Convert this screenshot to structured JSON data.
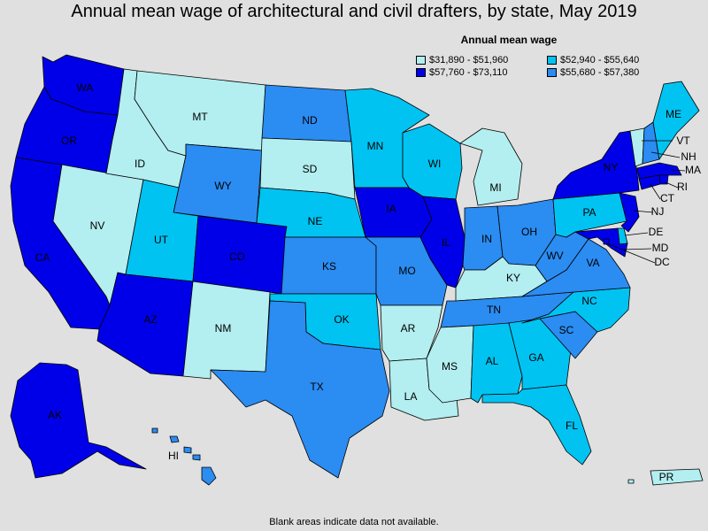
{
  "title": "Annual mean wage of architectural and civil drafters, by state, May 2019",
  "legend": {
    "title": "Annual mean wage",
    "items": [
      {
        "key": "c1",
        "label": "$31,890 - $51,960",
        "color": "#b3eef0"
      },
      {
        "key": "c3",
        "label": "$52,940 - $55,640",
        "color": "#00c3f2"
      },
      {
        "key": "c2",
        "label": "$55,680 - $57,380",
        "color": "#2b8cf2"
      },
      {
        "key": "c4",
        "label": "$57,760 - $73,110",
        "color": "#0000e8"
      }
    ]
  },
  "footnote": "Blank areas indicate data not available.",
  "states": {
    "WA": {
      "label": "WA",
      "class": "c4"
    },
    "OR": {
      "label": "OR",
      "class": "c4"
    },
    "CA": {
      "label": "CA",
      "class": "c4"
    },
    "NV": {
      "label": "NV",
      "class": "c1"
    },
    "ID": {
      "label": "ID",
      "class": "c1"
    },
    "MT": {
      "label": "MT",
      "class": "c1"
    },
    "WY": {
      "label": "WY",
      "class": "c2"
    },
    "UT": {
      "label": "UT",
      "class": "c3"
    },
    "AZ": {
      "label": "AZ",
      "class": "c4"
    },
    "CO": {
      "label": "CO",
      "class": "c4"
    },
    "NM": {
      "label": "NM",
      "class": "c1"
    },
    "ND": {
      "label": "ND",
      "class": "c2"
    },
    "SD": {
      "label": "SD",
      "class": "c1"
    },
    "NE": {
      "label": "NE",
      "class": "c3"
    },
    "KS": {
      "label": "KS",
      "class": "c2"
    },
    "OK": {
      "label": "OK",
      "class": "c3"
    },
    "TX": {
      "label": "TX",
      "class": "c2"
    },
    "MN": {
      "label": "MN",
      "class": "c3"
    },
    "IA": {
      "label": "IA",
      "class": "c4"
    },
    "MO": {
      "label": "MO",
      "class": "c2"
    },
    "AR": {
      "label": "AR",
      "class": "c1"
    },
    "LA": {
      "label": "LA",
      "class": "c1"
    },
    "WI": {
      "label": "WI",
      "class": "c3"
    },
    "IL": {
      "label": "IL",
      "class": "c4"
    },
    "MI": {
      "label": "MI",
      "class": "c1"
    },
    "IN": {
      "label": "IN",
      "class": "c2"
    },
    "OH": {
      "label": "OH",
      "class": "c2"
    },
    "KY": {
      "label": "KY",
      "class": "c1"
    },
    "TN": {
      "label": "TN",
      "class": "c2"
    },
    "MS": {
      "label": "MS",
      "class": "c1"
    },
    "AL": {
      "label": "AL",
      "class": "c3"
    },
    "GA": {
      "label": "GA",
      "class": "c3"
    },
    "FL": {
      "label": "FL",
      "class": "c3"
    },
    "SC": {
      "label": "SC",
      "class": "c2"
    },
    "NC": {
      "label": "NC",
      "class": "c3"
    },
    "VA": {
      "label": "VA",
      "class": "c2"
    },
    "WV": {
      "label": "WV",
      "class": "c2"
    },
    "PA": {
      "label": "PA",
      "class": "c3"
    },
    "NY": {
      "label": "NY",
      "class": "c4"
    },
    "ME": {
      "label": "ME",
      "class": "c3"
    },
    "VT": {
      "label": "VT",
      "class": "c1"
    },
    "NH": {
      "label": "NH",
      "class": "c2"
    },
    "MA": {
      "label": "MA",
      "class": "c4"
    },
    "RI": {
      "label": "RI",
      "class": "c4"
    },
    "CT": {
      "label": "CT",
      "class": "c4"
    },
    "NJ": {
      "label": "NJ",
      "class": "c4"
    },
    "DE": {
      "label": "DE",
      "class": "c3"
    },
    "MD": {
      "label": "MD",
      "class": "c4"
    },
    "DC": {
      "label": "DC",
      "class": "c4"
    },
    "AK": {
      "label": "AK",
      "class": "c4"
    },
    "HI": {
      "label": "HI",
      "class": "c2"
    },
    "PR": {
      "label": "PR",
      "class": "c1"
    }
  }
}
